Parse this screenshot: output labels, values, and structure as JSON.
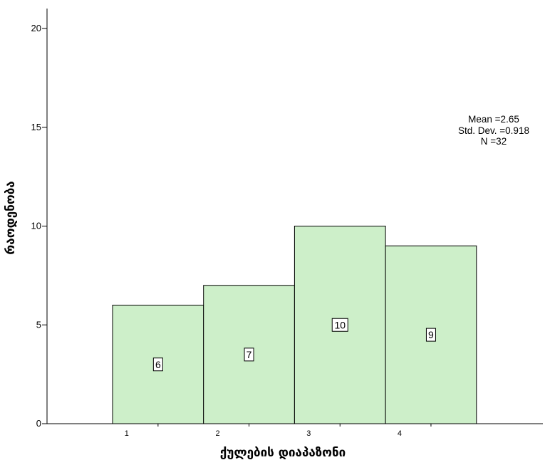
{
  "chart_data": {
    "type": "bar",
    "title": "",
    "xlabel": "ქულების დიაპაზონი",
    "ylabel": "რაოდენობა",
    "categories": [
      "1",
      "2",
      "3",
      "4"
    ],
    "values": [
      6,
      7,
      10,
      9
    ],
    "data_labels": [
      "6",
      "7",
      "10",
      "9"
    ],
    "ylim": [
      0,
      21
    ],
    "yticks": [
      0,
      5,
      10,
      15,
      20
    ],
    "ytick_labels": [
      "0",
      "5",
      "10",
      "15",
      "20"
    ],
    "grid": false,
    "bar_color": "#cdefc9",
    "bar_edge_color": "#000000",
    "stats": {
      "mean": "Mean =2.65",
      "std_dev": "Std. Dev. =0.918",
      "n": "N =32"
    }
  }
}
